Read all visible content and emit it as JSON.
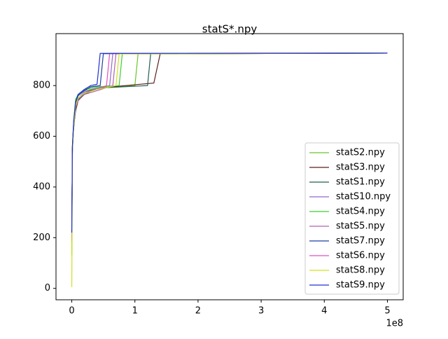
{
  "chart_data": {
    "type": "line",
    "title": "statS*.npy",
    "x_offset_label": "1e8",
    "xlim": [
      -25000000,
      525000000
    ],
    "ylim": [
      -45,
      1005
    ],
    "xticks": [
      0,
      {
        "value": 100000000,
        "label": "1"
      },
      {
        "value": 200000000,
        "label": "2"
      },
      {
        "value": 300000000,
        "label": "3"
      },
      {
        "value": 400000000,
        "label": "4"
      },
      {
        "value": 500000000,
        "label": "5"
      }
    ],
    "yticks": [
      0,
      200,
      400,
      600,
      800
    ],
    "legend": "lower right",
    "series": [
      {
        "name": "statS2.npy",
        "color": "#6cc52a",
        "x": [
          0,
          1000000,
          3000000,
          6000000,
          10000000,
          20000000,
          40000000,
          100000000,
          105000000,
          500000000
        ],
        "values": [
          130,
          560,
          650,
          740,
          760,
          780,
          790,
          800,
          925,
          928
        ]
      },
      {
        "name": "statS3.npy",
        "color": "#5a1f1f",
        "x": [
          0,
          1000000,
          3000000,
          6000000,
          10000000,
          20000000,
          40000000,
          130000000,
          140000000,
          500000000
        ],
        "values": [
          220,
          540,
          640,
          700,
          740,
          770,
          790,
          810,
          925,
          928
        ]
      },
      {
        "name": "statS1.npy",
        "color": "#1f5f4f",
        "x": [
          0,
          1000000,
          3000000,
          6000000,
          10000000,
          20000000,
          40000000,
          120000000,
          125000000,
          500000000
        ],
        "values": [
          200,
          550,
          630,
          710,
          745,
          765,
          790,
          800,
          926,
          928
        ]
      },
      {
        "name": "statS10.npy",
        "color": "#9466d0",
        "x": [
          0,
          1000000,
          3000000,
          6000000,
          10000000,
          20000000,
          40000000,
          60000000,
          65000000,
          500000000
        ],
        "values": [
          210,
          545,
          640,
          720,
          750,
          775,
          790,
          800,
          927,
          928
        ]
      },
      {
        "name": "statS4.npy",
        "color": "#3fcf2f",
        "x": [
          0,
          1000000,
          3000000,
          6000000,
          10000000,
          20000000,
          40000000,
          75000000,
          80000000,
          500000000
        ],
        "values": [
          180,
          560,
          660,
          745,
          765,
          785,
          795,
          800,
          925,
          928
        ]
      },
      {
        "name": "statS5.npy",
        "color": "#b060b0",
        "x": [
          0,
          1000000,
          3000000,
          6000000,
          10000000,
          20000000,
          40000000,
          65000000,
          70000000,
          500000000
        ],
        "values": [
          190,
          550,
          640,
          715,
          740,
          765,
          780,
          800,
          926,
          928
        ]
      },
      {
        "name": "statS7.npy",
        "color": "#1f3fa0",
        "x": [
          0,
          1000000,
          3000000,
          6000000,
          10000000,
          20000000,
          30000000,
          45000000,
          50000000,
          500000000
        ],
        "values": [
          220,
          555,
          650,
          730,
          760,
          780,
          795,
          800,
          926,
          928
        ]
      },
      {
        "name": "statS6.npy",
        "color": "#e050c0",
        "x": [
          0,
          1000000,
          3000000,
          6000000,
          10000000,
          20000000,
          40000000,
          55000000,
          60000000,
          500000000
        ],
        "values": [
          200,
          545,
          645,
          725,
          750,
          770,
          785,
          800,
          927,
          928
        ]
      },
      {
        "name": "statS8.npy",
        "color": "#d0e020",
        "x": [
          0,
          1000000,
          3000000,
          6000000,
          10000000,
          20000000,
          40000000,
          70000000,
          75000000,
          500000000
        ],
        "values": [
          5,
          530,
          640,
          720,
          750,
          770,
          785,
          800,
          925,
          928
        ]
      },
      {
        "name": "statS9.npy",
        "color": "#2030d0",
        "x": [
          0,
          1000000,
          3000000,
          6000000,
          10000000,
          20000000,
          30000000,
          40000000,
          45000000,
          500000000
        ],
        "values": [
          220,
          560,
          660,
          735,
          765,
          785,
          800,
          805,
          927,
          928
        ]
      }
    ]
  }
}
